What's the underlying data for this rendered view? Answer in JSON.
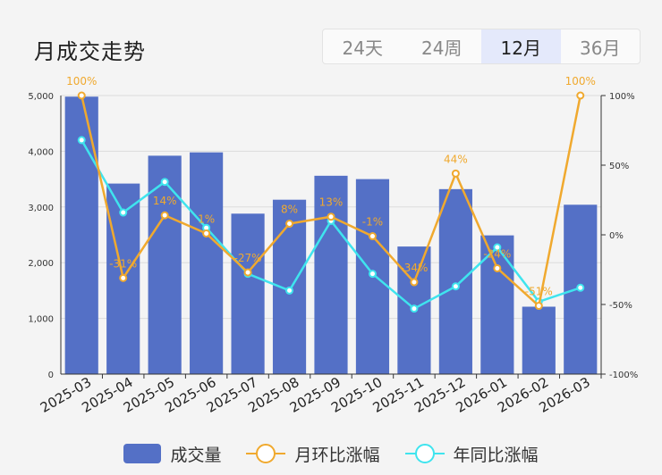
{
  "header": {
    "title": "月成交走势",
    "tabs": [
      {
        "label": "24天",
        "active": false
      },
      {
        "label": "24周",
        "active": false
      },
      {
        "label": "12月",
        "active": true
      },
      {
        "label": "36月",
        "active": false
      }
    ]
  },
  "colors": {
    "bar": "#5470c6",
    "mom_line": "#f0a92e",
    "yoy_line": "#3fe4ee"
  },
  "legend": {
    "volume": "成交量",
    "mom": "月环比涨幅",
    "yoy": "年同比涨幅"
  },
  "chart_data": {
    "type": "bar",
    "categories": [
      "2025-03",
      "2025-04",
      "2025-05",
      "2025-06",
      "2025-07",
      "2025-08",
      "2025-09",
      "2025-10",
      "2025-11",
      "2025-12",
      "2026-01",
      "2026-02",
      "2026-03"
    ],
    "series": [
      {
        "name": "成交量",
        "type": "bar",
        "axis": "left",
        "values": [
          4980,
          3420,
          3920,
          3980,
          2880,
          3130,
          3560,
          3500,
          2290,
          3320,
          2490,
          1210,
          3040
        ]
      },
      {
        "name": "月环比涨幅",
        "type": "line",
        "axis": "right",
        "values": [
          100,
          -31,
          14,
          1,
          -27,
          8,
          13,
          -1,
          -34,
          44,
          -24,
          -51,
          100
        ],
        "labels": [
          "100%",
          "-31%",
          "14%",
          "1%",
          "-27%",
          "8%",
          "13%",
          "-1%",
          "-34%",
          "44%",
          "-24%",
          "-51%",
          "100%"
        ]
      },
      {
        "name": "年同比涨幅",
        "type": "line",
        "axis": "right",
        "values": [
          68,
          16,
          38,
          5,
          -28,
          -40,
          10,
          -28,
          -53,
          -37,
          -9,
          -48,
          -38
        ]
      }
    ],
    "left_axis": {
      "min": 0,
      "max": 5000,
      "ticks": [
        "0",
        "1,000",
        "2,000",
        "3,000",
        "4,000",
        "5,000"
      ]
    },
    "right_axis": {
      "min": -100,
      "max": 100,
      "ticks": [
        "-100%",
        "-50%",
        "0%",
        "50%",
        "100%"
      ]
    },
    "legend_position": "bottom",
    "grid": true
  }
}
